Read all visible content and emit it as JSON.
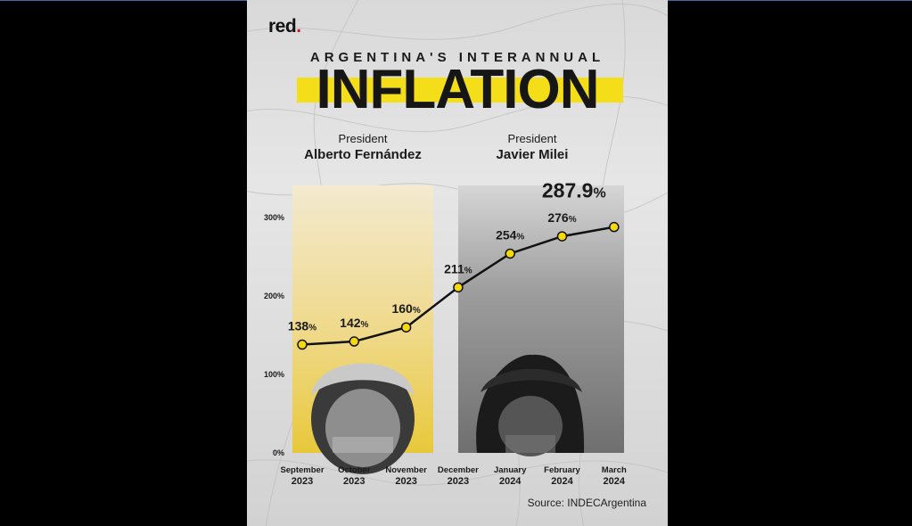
{
  "brand": {
    "name": "red",
    "dot": "."
  },
  "header": {
    "title_line1": "ARGENTINA'S INTERANNUAL",
    "title_line2": "INFLATION"
  },
  "presidents": [
    {
      "role": "President",
      "name": "Alberto Fernández"
    },
    {
      "role": "President",
      "name": "Javier Milei"
    }
  ],
  "source": "Source: INDECArgentina",
  "colors": {
    "accent_yellow": "#f4de1a",
    "brand_red": "#d71920",
    "line": "#111111",
    "marker": "#f5d90a"
  },
  "chart_data": {
    "type": "line",
    "title": "ARGENTINA'S INTERANNUAL INFLATION",
    "categories": [
      [
        "September",
        "2023"
      ],
      [
        "October",
        "2023"
      ],
      [
        "November",
        "2023"
      ],
      [
        "December",
        "2023"
      ],
      [
        "January",
        "2024"
      ],
      [
        "February",
        "2024"
      ],
      [
        "March",
        "2024"
      ]
    ],
    "values": [
      138,
      142,
      160,
      211,
      254,
      276,
      287.9
    ],
    "labels": [
      "138",
      "142",
      "160",
      "211",
      "254",
      "276",
      "287.9"
    ],
    "unit": "%",
    "yticks": [
      "0%",
      "100%",
      "200%",
      "300%"
    ],
    "ytick_values": [
      0,
      100,
      200,
      300
    ],
    "ylim": [
      0,
      300
    ],
    "grid": false,
    "legend": "none"
  }
}
